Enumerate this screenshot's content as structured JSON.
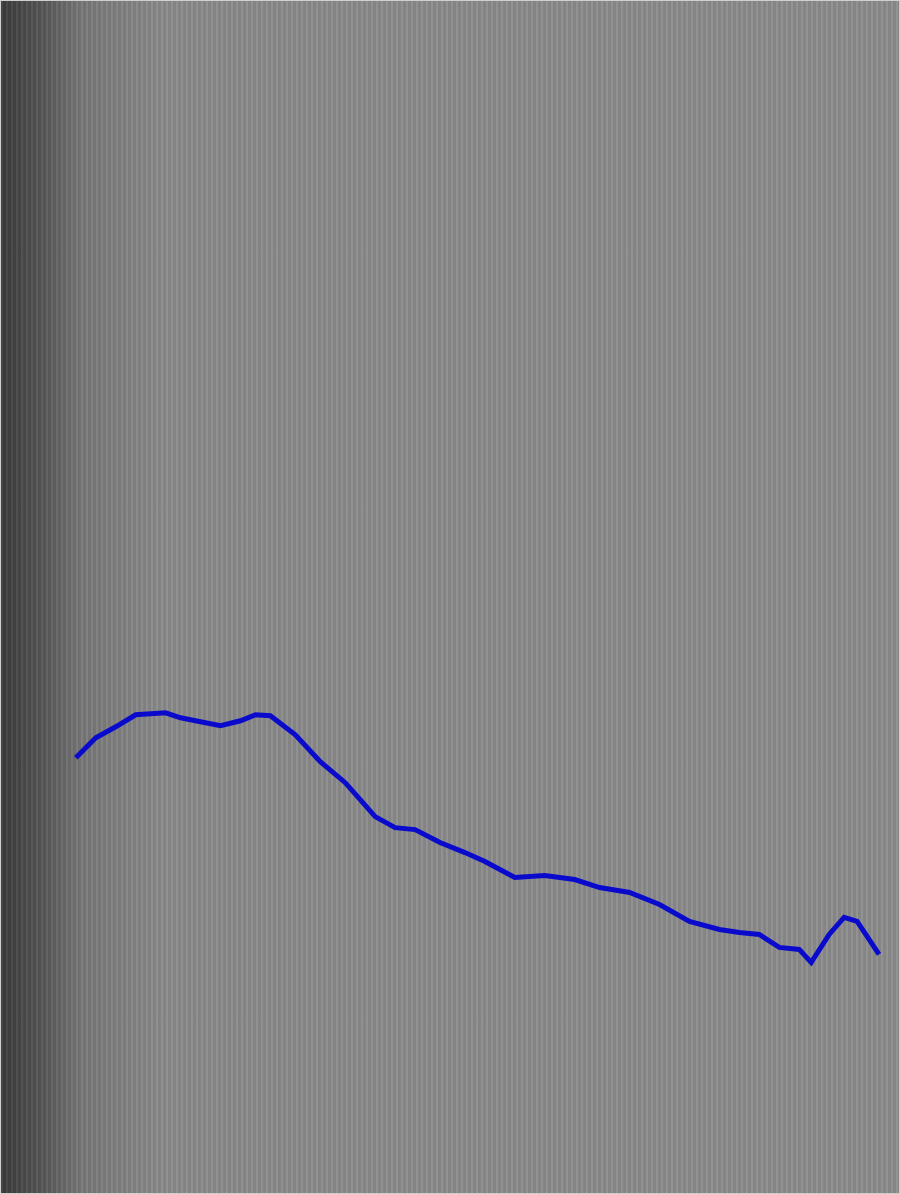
{
  "chart_data": {
    "type": "line",
    "x": [
      75,
      95,
      115,
      135,
      165,
      180,
      200,
      220,
      240,
      255,
      270,
      295,
      320,
      345,
      360,
      375,
      395,
      415,
      440,
      465,
      485,
      515,
      545,
      575,
      600,
      630,
      660,
      690,
      720,
      740,
      760,
      780,
      800,
      812,
      830,
      845,
      858,
      880
    ],
    "values": [
      436,
      456,
      467,
      479,
      481,
      476,
      472,
      468,
      473,
      479,
      478,
      459,
      432,
      411,
      394,
      377,
      366,
      364,
      351,
      341,
      332,
      316,
      318,
      314,
      306,
      301,
      289,
      272,
      264,
      261,
      259,
      246,
      244,
      231,
      259,
      276,
      272,
      239
    ],
    "color": "#0a0acd",
    "xlim": [
      0,
      900
    ],
    "ylim": [
      0,
      1194
    ],
    "grid": false,
    "tick_labels": false
  }
}
